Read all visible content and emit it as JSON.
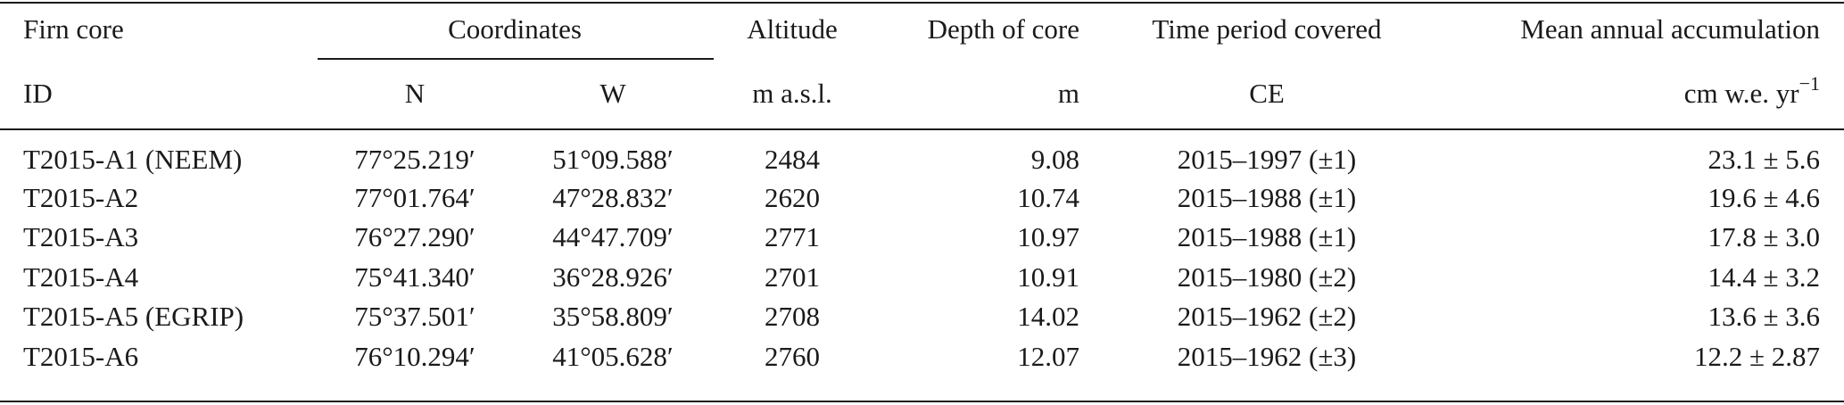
{
  "table": {
    "header": [
      "Firn core",
      "Coordinates",
      "Altitude",
      "Depth of core",
      "Time period covered",
      "Mean annual accumulation"
    ],
    "subheader": [
      "ID",
      "N",
      "W",
      "m a.s.l.",
      "m",
      "CE",
      {
        "text": "cm w.e. yr",
        "sup": "−1"
      }
    ],
    "rows": [
      [
        "T2015-A1 (NEEM)",
        "77°25.219′",
        "51°09.588′",
        "2484",
        "9.08",
        "2015–1997 (±1)",
        "23.1 ± 5.6"
      ],
      [
        "T2015-A2",
        "77°01.764′",
        "47°28.832′",
        "2620",
        "10.74",
        "2015–1988 (±1)",
        "19.6 ± 4.6"
      ],
      [
        "T2015-A3",
        "76°27.290′",
        "44°47.709′",
        "2771",
        "10.97",
        "2015–1988 (±1)",
        "17.8 ± 3.0"
      ],
      [
        "T2015-A4",
        "75°41.340′",
        "36°28.926′",
        "2701",
        "10.91",
        "2015–1980 (±2)",
        "14.4 ± 3.2"
      ],
      [
        "T2015-A5 (EGRIP)",
        "75°37.501′",
        "35°58.809′",
        "2708",
        "14.02",
        "2015–1962 (±2)",
        "13.6 ± 3.6"
      ],
      [
        "T2015-A6",
        "76°10.294′",
        "41°05.628′",
        "2760",
        "12.07",
        "2015–1962 (±3)",
        "12.2 ± 2.87"
      ]
    ]
  }
}
